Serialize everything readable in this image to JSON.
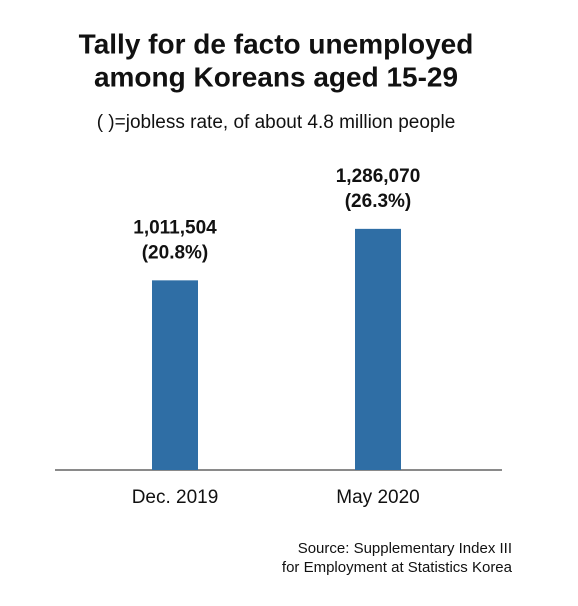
{
  "chart_data": {
    "type": "bar",
    "title": [
      "Tally for de facto unemployed",
      "among Koreans aged 15-29"
    ],
    "subtitle": "( )=jobless rate, of about 4.8 million people",
    "categories": [
      "Dec. 2019",
      "May 2020"
    ],
    "values": [
      1011504,
      1286070
    ],
    "value_labels": [
      "1,011,504",
      "1,286,070"
    ],
    "rates": [
      20.8,
      26.3
    ],
    "rate_labels": [
      "(20.8%)",
      "(26.3%)"
    ],
    "color": "#2f6ea5",
    "ylim": [
      0,
      2240000
    ],
    "grid": false,
    "source": [
      "Source: Supplementary Index III",
      "for Employment at Statistics Korea"
    ]
  }
}
